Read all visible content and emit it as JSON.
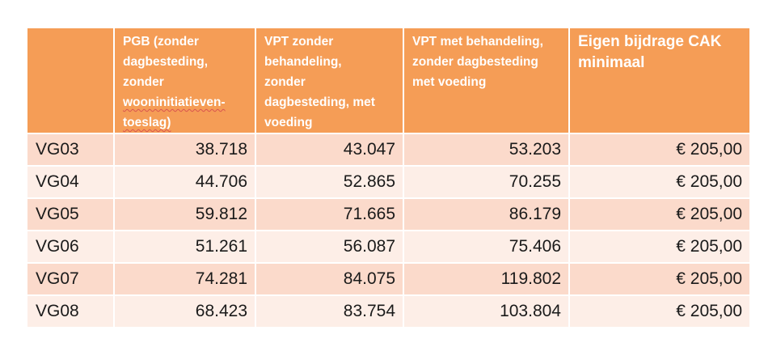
{
  "table": {
    "headers": {
      "col0": "",
      "col1_line1": "PGB (zonder",
      "col1_line2": "dagbesteding,",
      "col1_line3": "zonder",
      "col1_line4": "wooninitiatieven-",
      "col1_line5": "toeslag)",
      "col2_line1": "VPT zonder",
      "col2_line2": "behandeling,",
      "col2_line3": "zonder",
      "col2_line4": "dagbesteding, met",
      "col2_line5": "voeding",
      "col3_line1": "VPT met behandeling,",
      "col3_line2": "zonder dagbesteding",
      "col3_line3": "met voeding",
      "col4_line1": "Eigen bijdrage CAK",
      "col4_line2": "minimaal"
    },
    "rows": [
      {
        "code": "VG03",
        "pgb": "38.718",
        "vpt_zonder": "43.047",
        "vpt_met": "53.203",
        "eigen_bijdrage": "€ 205,00"
      },
      {
        "code": "VG04",
        "pgb": "44.706",
        "vpt_zonder": "52.865",
        "vpt_met": "70.255",
        "eigen_bijdrage": "€ 205,00"
      },
      {
        "code": "VG05",
        "pgb": "59.812",
        "vpt_zonder": "71.665",
        "vpt_met": "86.179",
        "eigen_bijdrage": "€ 205,00"
      },
      {
        "code": "VG06",
        "pgb": "51.261",
        "vpt_zonder": "56.087",
        "vpt_met": "75.406",
        "eigen_bijdrage": "€ 205,00"
      },
      {
        "code": "VG07",
        "pgb": "74.281",
        "vpt_zonder": "84.075",
        "vpt_met": "119.802",
        "eigen_bijdrage": "€ 205,00"
      },
      {
        "code": "VG08",
        "pgb": "68.423",
        "vpt_zonder": "83.754",
        "vpt_met": "103.804",
        "eigen_bijdrage": "€ 205,00"
      }
    ]
  },
  "colors": {
    "header_bg": "#f59d56",
    "row_odd_bg": "#fbdacb",
    "row_even_bg": "#fdeee7",
    "spellcheck_underline": "#d9534f"
  }
}
